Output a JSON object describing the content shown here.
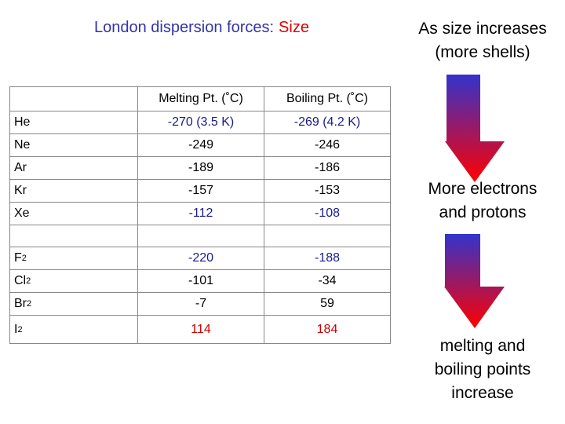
{
  "title": {
    "text": "London dispersion forces:",
    "highlight": "Size"
  },
  "side_notes": [
    [
      "As size increases",
      "(more shells)"
    ],
    [
      "More electrons",
      "and protons"
    ],
    [
      "melting and",
      "boiling points",
      "increase"
    ]
  ],
  "table": {
    "columns": [
      "Melting Pt. (˚C)",
      "Boiling Pt. (˚C)"
    ],
    "groups": [
      [
        {
          "symbol": "He",
          "melting": "-270 (3.5 K)",
          "boiling": "-269 (4.2 K)",
          "color": "#1a1a8c"
        },
        {
          "symbol": "Ne",
          "melting": "-249",
          "boiling": "-246",
          "color": "#000000"
        },
        {
          "symbol": "Ar",
          "melting": "-189",
          "boiling": "-186",
          "color": "#000000"
        },
        {
          "symbol": "Kr",
          "melting": "-157",
          "boiling": "-153",
          "color": "#000000"
        },
        {
          "symbol": "Xe",
          "melting": "-112",
          "boiling": "-108",
          "color": "#1a1a8c"
        }
      ],
      [
        {
          "symbol": "F",
          "subscript": "2",
          "melting": "-220",
          "boiling": "-188",
          "color": "#1a1a8c"
        },
        {
          "symbol": "Cl",
          "subscript": "2",
          "melting": "-101",
          "boiling": "-34",
          "color": "#000000"
        },
        {
          "symbol": "Br",
          "subscript": "2",
          "melting": "-7",
          "boiling": "59",
          "color": "#000000"
        },
        {
          "symbol": "I",
          "subscript": "2",
          "melting": "114",
          "boiling": "184",
          "color": "#cc0000"
        }
      ]
    ]
  }
}
